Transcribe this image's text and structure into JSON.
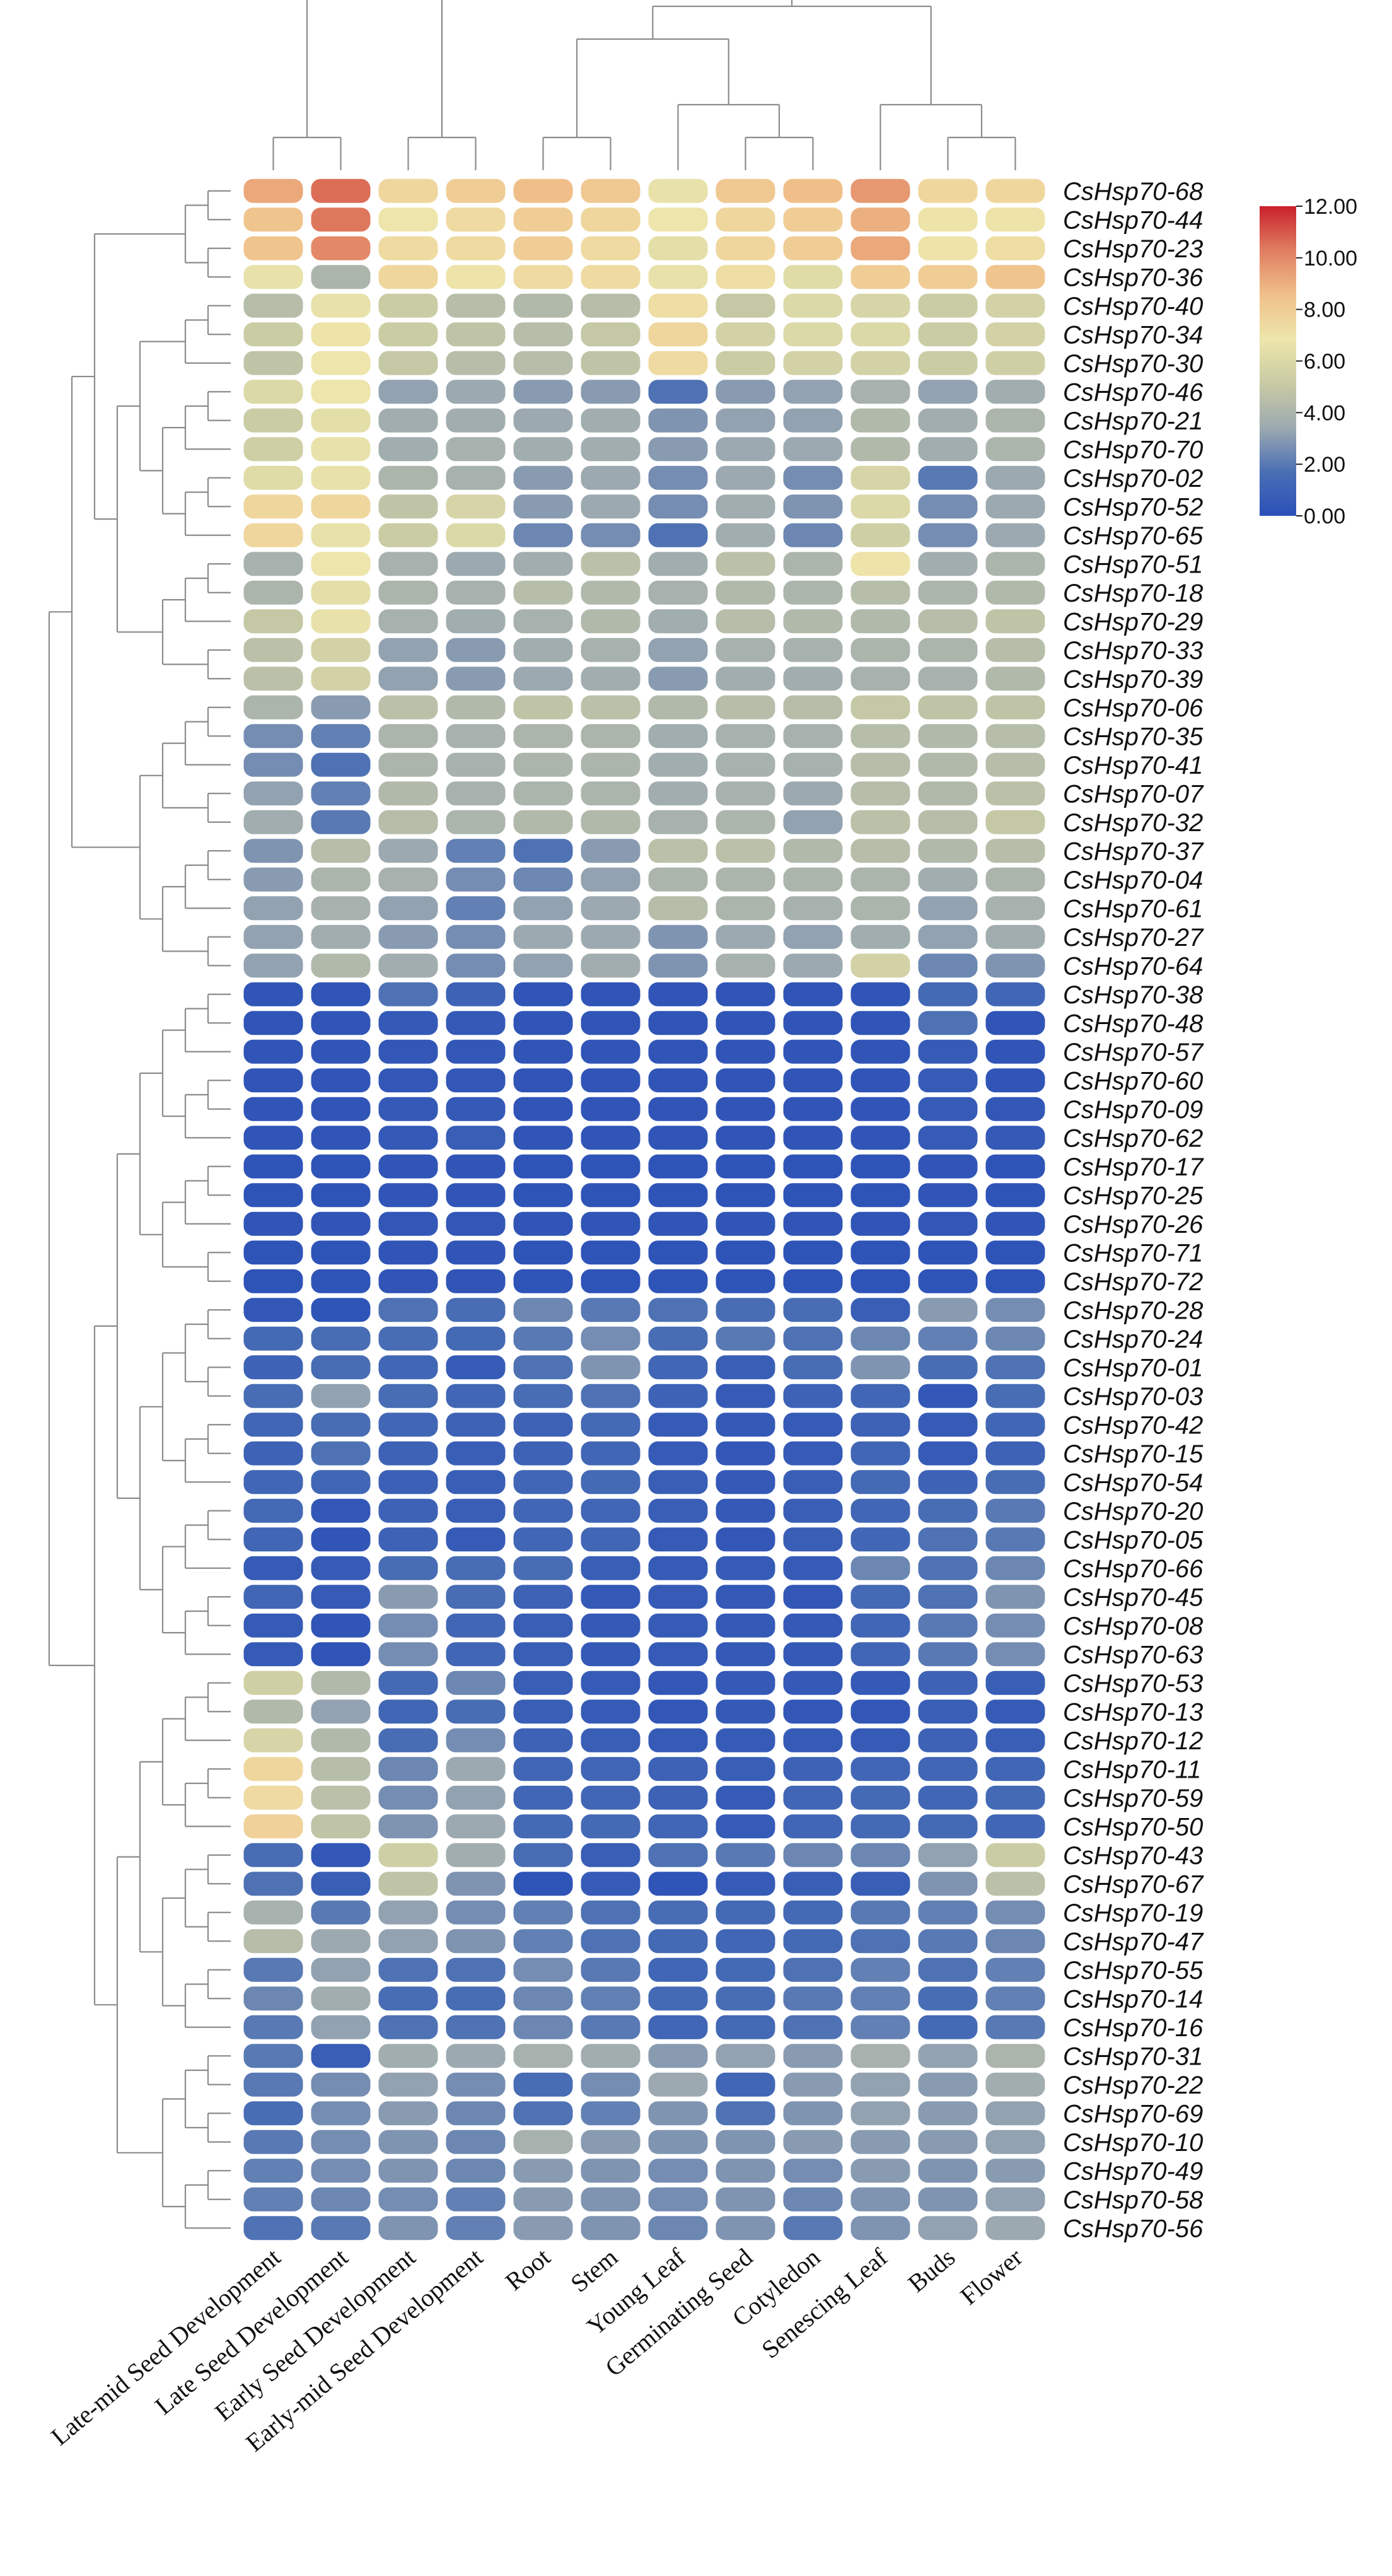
{
  "chart_data": {
    "type": "heatmap",
    "title": "",
    "xlabel": "",
    "ylabel": "",
    "columns": [
      "Late-mid Seed Development",
      "Late Seed Development",
      "Early Seed Development",
      "Early-mid Seed Development",
      "Root",
      "Stem",
      "Young Leaf",
      "Germinating Seed",
      "Cotyledon",
      "Senescing Leaf",
      "Buds",
      "Flower"
    ],
    "rows": [
      "CsHsp70-68",
      "CsHsp70-44",
      "CsHsp70-23",
      "CsHsp70-36",
      "CsHsp70-40",
      "CsHsp70-34",
      "CsHsp70-30",
      "CsHsp70-46",
      "CsHsp70-21",
      "CsHsp70-70",
      "CsHsp70-02",
      "CsHsp70-52",
      "CsHsp70-65",
      "CsHsp70-51",
      "CsHsp70-18",
      "CsHsp70-29",
      "CsHsp70-33",
      "CsHsp70-39",
      "CsHsp70-06",
      "CsHsp70-35",
      "CsHsp70-41",
      "CsHsp70-07",
      "CsHsp70-32",
      "CsHsp70-37",
      "CsHsp70-04",
      "CsHsp70-61",
      "CsHsp70-27",
      "CsHsp70-64",
      "CsHsp70-38",
      "CsHsp70-48",
      "CsHsp70-57",
      "CsHsp70-60",
      "CsHsp70-09",
      "CsHsp70-62",
      "CsHsp70-17",
      "CsHsp70-25",
      "CsHsp70-26",
      "CsHsp70-71",
      "CsHsp70-72",
      "CsHsp70-28",
      "CsHsp70-24",
      "CsHsp70-01",
      "CsHsp70-03",
      "CsHsp70-42",
      "CsHsp70-15",
      "CsHsp70-54",
      "CsHsp70-20",
      "CsHsp70-05",
      "CsHsp70-66",
      "CsHsp70-45",
      "CsHsp70-08",
      "CsHsp70-63",
      "CsHsp70-53",
      "CsHsp70-13",
      "CsHsp70-12",
      "CsHsp70-11",
      "CsHsp70-59",
      "CsHsp70-50",
      "CsHsp70-43",
      "CsHsp70-67",
      "CsHsp70-19",
      "CsHsp70-47",
      "CsHsp70-55",
      "CsHsp70-14",
      "CsHsp70-16",
      "CsHsp70-31",
      "CsHsp70-22",
      "CsHsp70-69",
      "CsHsp70-10",
      "CsHsp70-49",
      "CsHsp70-58",
      "CsHsp70-56"
    ],
    "values": [
      [
        9.2,
        10.6,
        7.6,
        8.0,
        8.6,
        8.2,
        6.6,
        8.2,
        8.6,
        9.6,
        7.6,
        7.6
      ],
      [
        8.4,
        10.4,
        6.8,
        7.4,
        8.0,
        7.6,
        6.8,
        7.6,
        8.0,
        9.0,
        7.0,
        7.0
      ],
      [
        8.4,
        10.0,
        7.4,
        7.4,
        8.0,
        7.4,
        6.4,
        7.6,
        8.0,
        9.2,
        7.0,
        7.2
      ],
      [
        6.6,
        4.0,
        7.6,
        7.0,
        7.4,
        7.4,
        6.6,
        7.2,
        6.2,
        8.0,
        8.0,
        8.4
      ],
      [
        4.4,
        6.6,
        5.2,
        4.4,
        4.2,
        4.4,
        7.2,
        5.0,
        6.0,
        5.8,
        5.2,
        5.6
      ],
      [
        5.2,
        7.0,
        5.2,
        4.8,
        4.4,
        5.0,
        7.6,
        5.6,
        6.0,
        6.0,
        5.2,
        5.6
      ],
      [
        4.8,
        6.8,
        5.0,
        4.4,
        4.4,
        4.8,
        7.4,
        5.2,
        5.6,
        5.6,
        5.2,
        5.4
      ],
      [
        6.0,
        6.8,
        3.2,
        3.4,
        3.0,
        3.0,
        1.8,
        3.0,
        3.2,
        3.8,
        3.2,
        3.6
      ],
      [
        5.2,
        6.4,
        3.6,
        3.6,
        3.4,
        3.6,
        2.8,
        3.2,
        3.2,
        4.2,
        3.6,
        4.0
      ],
      [
        5.4,
        6.6,
        3.6,
        3.8,
        3.6,
        3.6,
        3.0,
        3.4,
        3.4,
        4.2,
        3.6,
        4.0
      ],
      [
        6.2,
        6.6,
        4.0,
        3.8,
        3.0,
        3.4,
        2.6,
        3.4,
        2.6,
        5.8,
        2.0,
        3.4
      ],
      [
        7.6,
        7.6,
        4.8,
        5.8,
        3.0,
        3.4,
        2.6,
        3.6,
        2.8,
        6.0,
        2.6,
        3.4
      ],
      [
        7.6,
        6.6,
        5.2,
        6.0,
        2.4,
        2.6,
        1.8,
        3.6,
        2.4,
        5.4,
        2.6,
        3.4
      ],
      [
        3.8,
        6.8,
        3.8,
        3.4,
        3.6,
        4.6,
        3.6,
        4.6,
        4.0,
        7.0,
        3.6,
        4.0
      ],
      [
        4.0,
        6.4,
        4.0,
        3.8,
        4.4,
        4.2,
        3.8,
        4.2,
        4.0,
        4.4,
        4.0,
        4.2
      ],
      [
        5.0,
        6.6,
        3.8,
        3.6,
        3.8,
        4.2,
        3.6,
        4.4,
        4.2,
        4.2,
        4.4,
        4.8
      ],
      [
        4.6,
        5.6,
        3.2,
        3.0,
        3.6,
        3.8,
        3.2,
        3.8,
        3.8,
        4.0,
        4.0,
        4.4
      ],
      [
        4.6,
        5.6,
        3.2,
        3.0,
        3.4,
        3.6,
        3.0,
        3.6,
        3.6,
        3.8,
        3.8,
        4.2
      ],
      [
        4.0,
        3.0,
        4.6,
        4.2,
        4.8,
        4.6,
        4.2,
        4.4,
        4.4,
        5.0,
        4.8,
        4.8
      ],
      [
        2.6,
        2.2,
        4.0,
        3.8,
        4.0,
        4.0,
        3.6,
        3.8,
        3.8,
        4.4,
        4.2,
        4.4
      ],
      [
        2.6,
        1.8,
        4.0,
        3.8,
        4.0,
        4.0,
        3.6,
        3.8,
        3.8,
        4.4,
        4.2,
        4.4
      ],
      [
        3.2,
        2.2,
        4.2,
        3.8,
        4.0,
        4.0,
        3.6,
        3.8,
        3.4,
        4.4,
        4.2,
        4.6
      ],
      [
        3.6,
        2.0,
        4.4,
        4.0,
        4.2,
        4.2,
        3.8,
        4.0,
        3.2,
        4.6,
        4.4,
        5.0
      ],
      [
        2.8,
        4.4,
        3.4,
        2.2,
        1.8,
        3.0,
        4.6,
        4.6,
        4.2,
        4.4,
        4.2,
        4.4
      ],
      [
        3.0,
        4.0,
        3.8,
        2.6,
        2.4,
        3.2,
        4.0,
        4.0,
        4.0,
        4.0,
        3.6,
        4.0
      ],
      [
        3.2,
        3.8,
        3.2,
        2.2,
        3.2,
        3.4,
        4.4,
        4.0,
        3.8,
        4.0,
        3.2,
        3.8
      ],
      [
        3.2,
        3.6,
        3.0,
        2.6,
        3.4,
        3.4,
        2.8,
        3.4,
        3.2,
        3.6,
        3.2,
        3.6
      ],
      [
        3.2,
        4.2,
        3.6,
        2.6,
        3.2,
        3.6,
        2.8,
        3.8,
        3.4,
        5.6,
        2.4,
        2.8
      ],
      [
        0.3,
        0.3,
        1.8,
        1.0,
        0.3,
        0.3,
        0.3,
        0.3,
        0.3,
        0.3,
        1.4,
        1.2
      ],
      [
        0.3,
        0.3,
        0.5,
        0.5,
        0.3,
        0.3,
        0.3,
        0.3,
        0.3,
        0.3,
        1.8,
        0.3
      ],
      [
        0.3,
        0.3,
        0.4,
        0.4,
        0.3,
        0.3,
        0.3,
        0.3,
        0.3,
        0.3,
        0.6,
        0.3
      ],
      [
        0.3,
        0.3,
        0.4,
        0.4,
        0.3,
        0.3,
        0.3,
        0.3,
        0.3,
        0.3,
        0.6,
        0.3
      ],
      [
        0.3,
        0.3,
        0.5,
        0.5,
        0.3,
        0.3,
        0.3,
        0.3,
        0.3,
        0.3,
        0.6,
        0.4
      ],
      [
        0.3,
        0.3,
        0.5,
        0.8,
        0.3,
        0.3,
        0.3,
        0.3,
        0.3,
        0.3,
        0.6,
        0.5
      ],
      [
        0.2,
        0.2,
        0.3,
        0.3,
        0.2,
        0.2,
        0.2,
        0.2,
        0.2,
        0.2,
        0.3,
        0.2
      ],
      [
        0.2,
        0.2,
        0.3,
        0.3,
        0.2,
        0.2,
        0.2,
        0.2,
        0.2,
        0.2,
        0.3,
        0.2
      ],
      [
        0.3,
        0.3,
        0.4,
        0.4,
        0.3,
        0.3,
        0.3,
        0.3,
        0.3,
        0.3,
        0.4,
        0.3
      ],
      [
        0.2,
        0.2,
        0.3,
        0.3,
        0.2,
        0.2,
        0.2,
        0.2,
        0.2,
        0.2,
        0.2,
        0.2
      ],
      [
        0.2,
        0.2,
        0.3,
        0.3,
        0.2,
        0.2,
        0.2,
        0.2,
        0.2,
        0.2,
        0.2,
        0.2
      ],
      [
        0.4,
        0.2,
        1.8,
        1.6,
        2.4,
        2.0,
        1.8,
        1.6,
        1.6,
        0.8,
        3.0,
        2.6
      ],
      [
        1.4,
        1.6,
        1.6,
        1.4,
        2.0,
        2.6,
        1.6,
        2.0,
        1.8,
        2.4,
        2.2,
        2.4
      ],
      [
        1.0,
        1.6,
        1.2,
        0.6,
        1.8,
        2.8,
        1.2,
        0.8,
        1.6,
        2.8,
        1.6,
        1.8
      ],
      [
        1.6,
        3.2,
        1.6,
        1.2,
        1.6,
        1.8,
        1.0,
        0.6,
        1.0,
        1.2,
        0.4,
        1.6
      ],
      [
        1.2,
        1.6,
        1.2,
        1.0,
        1.0,
        1.4,
        0.6,
        0.5,
        0.6,
        1.0,
        0.6,
        1.2
      ],
      [
        1.0,
        1.8,
        1.0,
        0.8,
        1.0,
        1.2,
        0.6,
        0.4,
        0.6,
        1.2,
        0.6,
        1.0
      ],
      [
        1.2,
        1.2,
        0.9,
        0.8,
        1.2,
        1.4,
        0.8,
        0.5,
        0.8,
        1.4,
        1.0,
        1.6
      ],
      [
        1.4,
        0.4,
        1.0,
        0.8,
        1.2,
        1.2,
        0.8,
        0.5,
        0.8,
        1.2,
        1.6,
        2.0
      ],
      [
        1.2,
        0.3,
        1.0,
        0.6,
        1.2,
        1.2,
        0.6,
        0.4,
        0.8,
        1.2,
        1.8,
        2.0
      ],
      [
        0.6,
        0.6,
        1.6,
        1.6,
        1.6,
        0.8,
        0.6,
        0.6,
        0.6,
        2.4,
        1.8,
        2.4
      ],
      [
        1.2,
        0.6,
        3.0,
        1.6,
        1.0,
        0.5,
        0.6,
        0.5,
        0.4,
        1.4,
        1.8,
        2.8
      ],
      [
        0.6,
        0.3,
        2.6,
        1.2,
        0.8,
        0.5,
        0.6,
        0.5,
        0.5,
        1.2,
        2.0,
        2.6
      ],
      [
        0.6,
        0.3,
        2.6,
        1.2,
        0.8,
        0.5,
        0.6,
        0.5,
        0.5,
        1.2,
        2.0,
        2.6
      ],
      [
        5.4,
        4.2,
        1.4,
        2.4,
        0.8,
        0.6,
        0.4,
        0.5,
        0.5,
        0.5,
        1.0,
        0.8
      ],
      [
        4.2,
        3.2,
        1.2,
        1.6,
        0.8,
        0.6,
        0.4,
        0.5,
        0.4,
        0.4,
        0.8,
        0.6
      ],
      [
        5.8,
        4.2,
        1.6,
        2.6,
        1.0,
        0.8,
        0.6,
        0.6,
        0.6,
        0.6,
        1.0,
        0.8
      ],
      [
        7.6,
        4.4,
        2.4,
        3.4,
        1.2,
        1.2,
        1.0,
        0.8,
        1.0,
        1.2,
        1.2,
        1.2
      ],
      [
        7.4,
        4.6,
        2.6,
        3.2,
        1.2,
        1.2,
        1.0,
        0.6,
        1.2,
        1.4,
        1.2,
        1.4
      ],
      [
        7.8,
        4.8,
        2.8,
        3.4,
        1.4,
        1.4,
        1.2,
        0.6,
        1.2,
        1.4,
        1.4,
        1.2
      ],
      [
        1.6,
        0.4,
        5.4,
        3.6,
        1.6,
        0.8,
        1.8,
        2.0,
        2.4,
        2.4,
        3.2,
        5.2
      ],
      [
        1.8,
        0.8,
        4.8,
        2.8,
        0.2,
        0.6,
        0.2,
        0.6,
        0.8,
        0.8,
        2.8,
        4.6
      ],
      [
        3.8,
        2.0,
        3.2,
        2.6,
        2.2,
        1.8,
        1.6,
        1.4,
        1.4,
        2.0,
        2.2,
        2.6
      ],
      [
        4.4,
        3.4,
        3.2,
        2.8,
        2.2,
        1.8,
        1.4,
        1.2,
        1.4,
        1.8,
        2.0,
        2.4
      ],
      [
        2.0,
        3.2,
        1.8,
        1.8,
        2.6,
        2.0,
        1.2,
        1.4,
        1.8,
        2.2,
        1.8,
        2.2
      ],
      [
        2.4,
        3.6,
        1.6,
        1.6,
        2.4,
        2.2,
        1.4,
        1.6,
        2.0,
        2.2,
        1.6,
        2.2
      ],
      [
        2.0,
        3.2,
        1.8,
        1.8,
        2.4,
        2.0,
        1.2,
        1.4,
        1.8,
        2.2,
        1.4,
        2.0
      ],
      [
        2.0,
        0.8,
        3.6,
        3.4,
        3.8,
        3.6,
        3.0,
        3.2,
        3.0,
        3.8,
        3.2,
        4.0
      ],
      [
        2.0,
        2.6,
        3.2,
        2.6,
        1.6,
        2.6,
        3.4,
        1.2,
        3.0,
        3.2,
        3.0,
        3.6
      ],
      [
        1.6,
        2.6,
        3.0,
        2.4,
        1.8,
        2.2,
        2.8,
        1.8,
        2.8,
        3.2,
        3.0,
        3.2
      ],
      [
        2.0,
        2.6,
        2.8,
        2.4,
        3.8,
        3.0,
        2.8,
        2.8,
        3.0,
        3.0,
        3.0,
        3.2
      ],
      [
        2.2,
        2.6,
        2.8,
        2.4,
        3.0,
        2.8,
        2.6,
        2.8,
        2.6,
        3.0,
        2.8,
        3.0
      ],
      [
        2.2,
        2.4,
        2.6,
        2.2,
        3.0,
        2.8,
        2.6,
        2.8,
        2.4,
        2.8,
        2.8,
        3.2
      ],
      [
        1.8,
        2.0,
        2.8,
        2.2,
        3.0,
        2.8,
        2.4,
        2.8,
        2.0,
        2.8,
        3.2,
        3.4
      ]
    ],
    "zlim": [
      0,
      12
    ],
    "legend": {
      "position": "top-right",
      "ticks": [
        "12.00",
        "10.00",
        "8.00",
        "6.00",
        "4.00",
        "2.00",
        "0.00"
      ],
      "colors": [
        "#2b50b8",
        "#4a6fb4",
        "#9daab0",
        "#c9cba4",
        "#eee6ab",
        "#f0c08a",
        "#e07e61",
        "#c9202c"
      ]
    },
    "row_order_tree": [
      [
        0,
        1,
        2,
        3,
        [
          4,
          5,
          6
        ],
        [
          7,
          8,
          9,
          10,
          11,
          12
        ],
        [
          13,
          14,
          15,
          16,
          17
        ]
      ],
      [
        [
          18,
          19,
          20,
          21,
          22
        ],
        [
          23,
          24,
          25,
          26,
          27
        ]
      ],
      [
        [
          28,
          29,
          30,
          31,
          32,
          33,
          34,
          35,
          36,
          37,
          38
        ],
        [
          39,
          40,
          41,
          42,
          43,
          44,
          45,
          46,
          47,
          48,
          49,
          50,
          51
        ]
      ],
      [
        [
          52,
          53,
          54,
          55,
          56,
          57
        ],
        [
          58,
          59,
          60,
          61,
          62,
          63,
          64
        ],
        [
          65,
          66,
          67,
          68,
          69,
          70,
          71
        ]
      ]
    ],
    "grid": false
  }
}
